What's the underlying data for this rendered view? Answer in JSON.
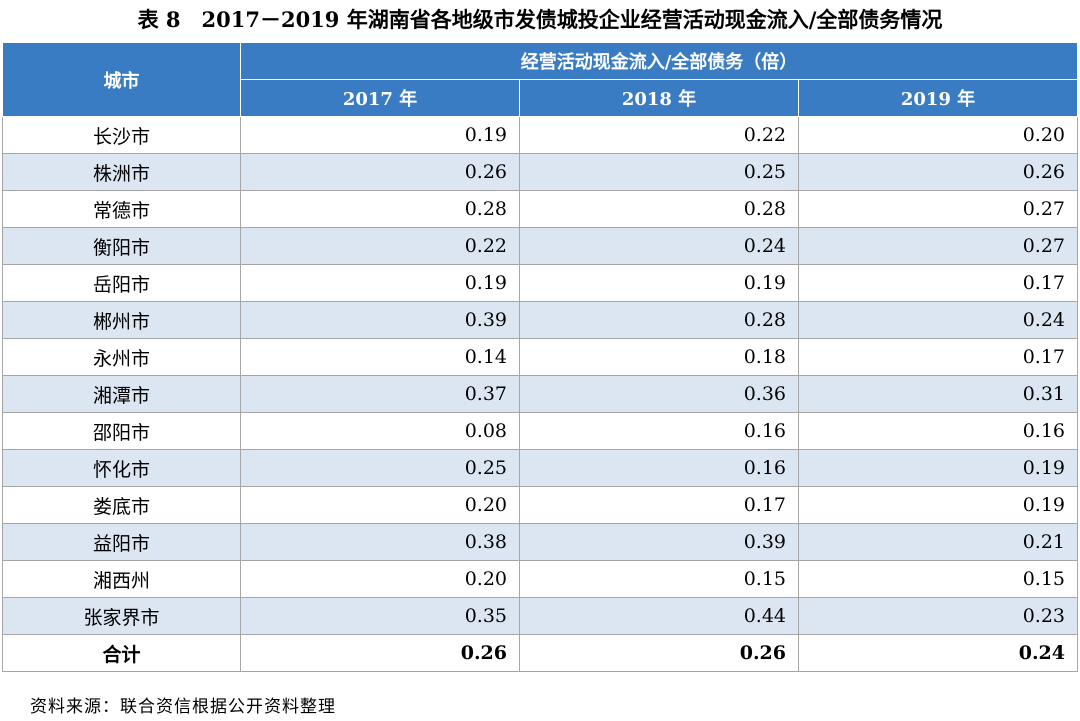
{
  "title": "表 8　2017－2019 年湖南省各地级市发债城投企业经营活动现金流入/全部债务情况",
  "table": {
    "header": {
      "city": "城市",
      "group": "经营活动现金流入/全部债务（倍）",
      "years": [
        "2017 年",
        "2018 年",
        "2019 年"
      ]
    },
    "rows": [
      [
        "长沙市",
        "0.19",
        "0.22",
        "0.20"
      ],
      [
        "株洲市",
        "0.26",
        "0.25",
        "0.26"
      ],
      [
        "常德市",
        "0.28",
        "0.28",
        "0.27"
      ],
      [
        "衡阳市",
        "0.22",
        "0.24",
        "0.27"
      ],
      [
        "岳阳市",
        "0.19",
        "0.19",
        "0.17"
      ],
      [
        "郴州市",
        "0.39",
        "0.28",
        "0.24"
      ],
      [
        "永州市",
        "0.14",
        "0.18",
        "0.17"
      ],
      [
        "湘潭市",
        "0.37",
        "0.36",
        "0.31"
      ],
      [
        "邵阳市",
        "0.08",
        "0.16",
        "0.16"
      ],
      [
        "怀化市",
        "0.25",
        "0.16",
        "0.19"
      ],
      [
        "娄底市",
        "0.20",
        "0.17",
        "0.19"
      ],
      [
        "益阳市",
        "0.38",
        "0.39",
        "0.21"
      ],
      [
        "湘西州",
        "0.20",
        "0.15",
        "0.15"
      ],
      [
        "张家界市",
        "0.35",
        "0.44",
        "0.23"
      ]
    ],
    "total": [
      "合计",
      "0.26",
      "0.26",
      "0.24"
    ]
  },
  "source": "资料来源：联合资信根据公开资料整理"
}
